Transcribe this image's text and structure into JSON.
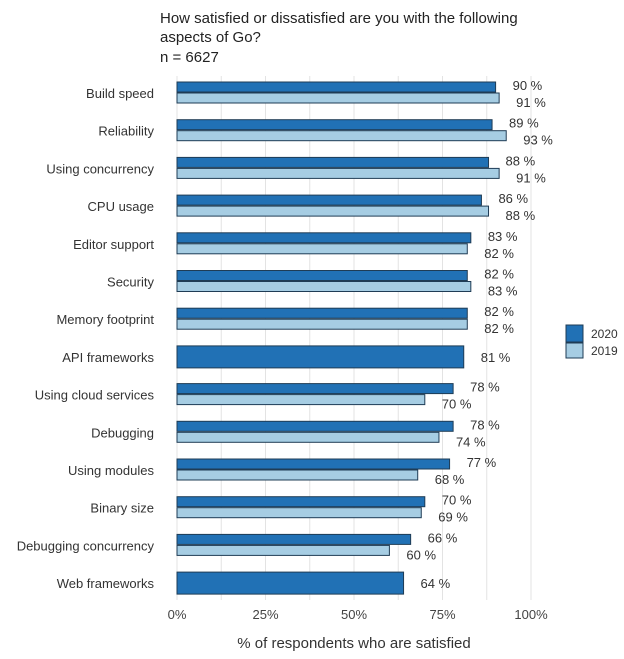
{
  "chart_data": {
    "type": "bar",
    "orientation": "horizontal",
    "title_lines": [
      "How satisfied or dissatisfied are you with the following",
      "aspects of Go?"
    ],
    "subtitle": "n = 6627",
    "xlabel": "% of respondents who are satisfied",
    "xlim": [
      0,
      100
    ],
    "x_ticks": [
      "0%",
      "25%",
      "50%",
      "75%",
      "100%"
    ],
    "x_tick_values": [
      0,
      25,
      50,
      75,
      100
    ],
    "grid": true,
    "legend_position": "right",
    "categories": [
      "Build speed",
      "Reliability",
      "Using concurrency",
      "CPU usage",
      "Editor support",
      "Security",
      "Memory footprint",
      "API frameworks",
      "Using cloud services",
      "Debugging",
      "Using modules",
      "Binary size",
      "Debugging concurrency",
      "Web frameworks"
    ],
    "series": [
      {
        "name": "2020",
        "color": "#2171b5",
        "values": [
          90,
          89,
          88,
          86,
          83,
          82,
          82,
          81,
          78,
          78,
          77,
          70,
          66,
          64
        ],
        "labels": [
          "90 %",
          "89 %",
          "88 %",
          "86 %",
          "83 %",
          "82 %",
          "82 %",
          "81 %",
          "78 %",
          "78 %",
          "77 %",
          "70 %",
          "66 %",
          "64 %"
        ]
      },
      {
        "name": "2019",
        "color": "#a6cde3",
        "values": [
          91,
          93,
          91,
          88,
          82,
          83,
          82,
          null,
          70,
          74,
          68,
          69,
          60,
          null
        ],
        "labels": [
          "91 %",
          "93 %",
          "91 %",
          "88 %",
          "82 %",
          "83 %",
          "82 %",
          null,
          "70 %",
          "74 %",
          "68 %",
          "69 %",
          "60 %",
          null
        ]
      }
    ]
  }
}
